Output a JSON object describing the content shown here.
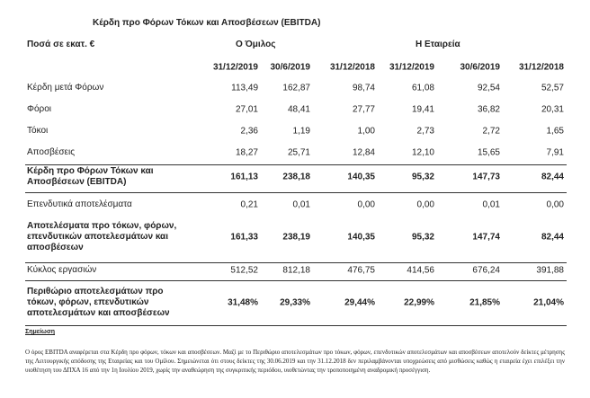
{
  "title": "Κέρδη προ Φόρων Τόκων και Αποσβέσεων (EBITDA)",
  "header": {
    "label": "Ποσά σε εκατ. €",
    "group": "Ο Όμιλος",
    "company": "Η Εταιρεία"
  },
  "dates": [
    "31/12/2019",
    "30/6/2019",
    "31/12/2018",
    "31/12/2019",
    "30/6/2019",
    "31/12/2018"
  ],
  "rows": [
    {
      "label": "Κέρδη μετά Φόρων",
      "bold": false,
      "values": [
        "113,49",
        "162,87",
        "98,74",
        "61,08",
        "92,54",
        "52,57"
      ]
    },
    {
      "label": "Φόροι",
      "bold": false,
      "values": [
        "27,01",
        "48,41",
        "27,77",
        "19,41",
        "36,82",
        "20,31"
      ]
    },
    {
      "label": "Τόκοι",
      "bold": false,
      "values": [
        "2,36",
        "1,19",
        "1,00",
        "2,73",
        "2,72",
        "1,65"
      ]
    },
    {
      "label": "Αποσβέσεις",
      "bold": false,
      "values": [
        "18,27",
        "25,71",
        "12,84",
        "12,10",
        "15,65",
        "7,91"
      ]
    },
    {
      "label": "Κέρδη προ Φόρων Τόκων και Αποσβέσεων (EBITDA)",
      "bold": true,
      "values": [
        "161,13",
        "238,18",
        "140,35",
        "95,32",
        "147,73",
        "82,44"
      ]
    },
    {
      "label": "Επενδυτικά αποτελέσματα",
      "bold": false,
      "values": [
        "0,21",
        "0,01",
        "0,00",
        "0,00",
        "0,01",
        "0,00"
      ]
    },
    {
      "label": "Αποτελέσματα προ τόκων, φόρων, επενδυτικών αποτελεσμάτων και αποσβέσεων",
      "bold": true,
      "values": [
        "161,33",
        "238,19",
        "140,35",
        "95,32",
        "147,74",
        "82,44"
      ]
    },
    {
      "label": "Κύκλος εργασιών",
      "bold": false,
      "values": [
        "512,52",
        "812,18",
        "476,75",
        "414,56",
        "676,24",
        "391,88"
      ]
    },
    {
      "label": "Περιθώριο αποτελεσμάτων προ τόκων, φόρων, επενδυτικών αποτελεσμάτων και αποσβέσεων",
      "bold": true,
      "values": [
        "31,48%",
        "29,33%",
        "29,44%",
        "22,99%",
        "21,85%",
        "21,04%"
      ]
    }
  ],
  "note": {
    "title": "Σημείωση",
    "text": "Ο όρος EBITDA αναφέρεται στα Κέρδη προ φόρων, τόκων και αποσβέσεων. Μαζί με το Περιθώριο αποτελεσμάτων προ τόκων, φόρων, επενδυτικών αποτελεσμάτων και αποσβέσεων αποτελούν δείκτες μέτρησης της Λειτουργικής απόδοσης της Εταιρείας και του Ομίλου. Σημειώνεται ότι στους δείκτες της 30.06.2019 και την 31.12.2018 δεν περιλαμβάνονται υποχρεώσεις από μισθώσεις καθώς η εταιρεία έχει επιλέξει την υιοθέτηση του ΔΠΧΑ 16 από την 1η Ιουλίου 2019, χωρίς την αναθεώρηση της συγκριτικής περιόδου, υιοθετώντας την τροποποιημένη αναδρομική προσέγγιση."
  }
}
